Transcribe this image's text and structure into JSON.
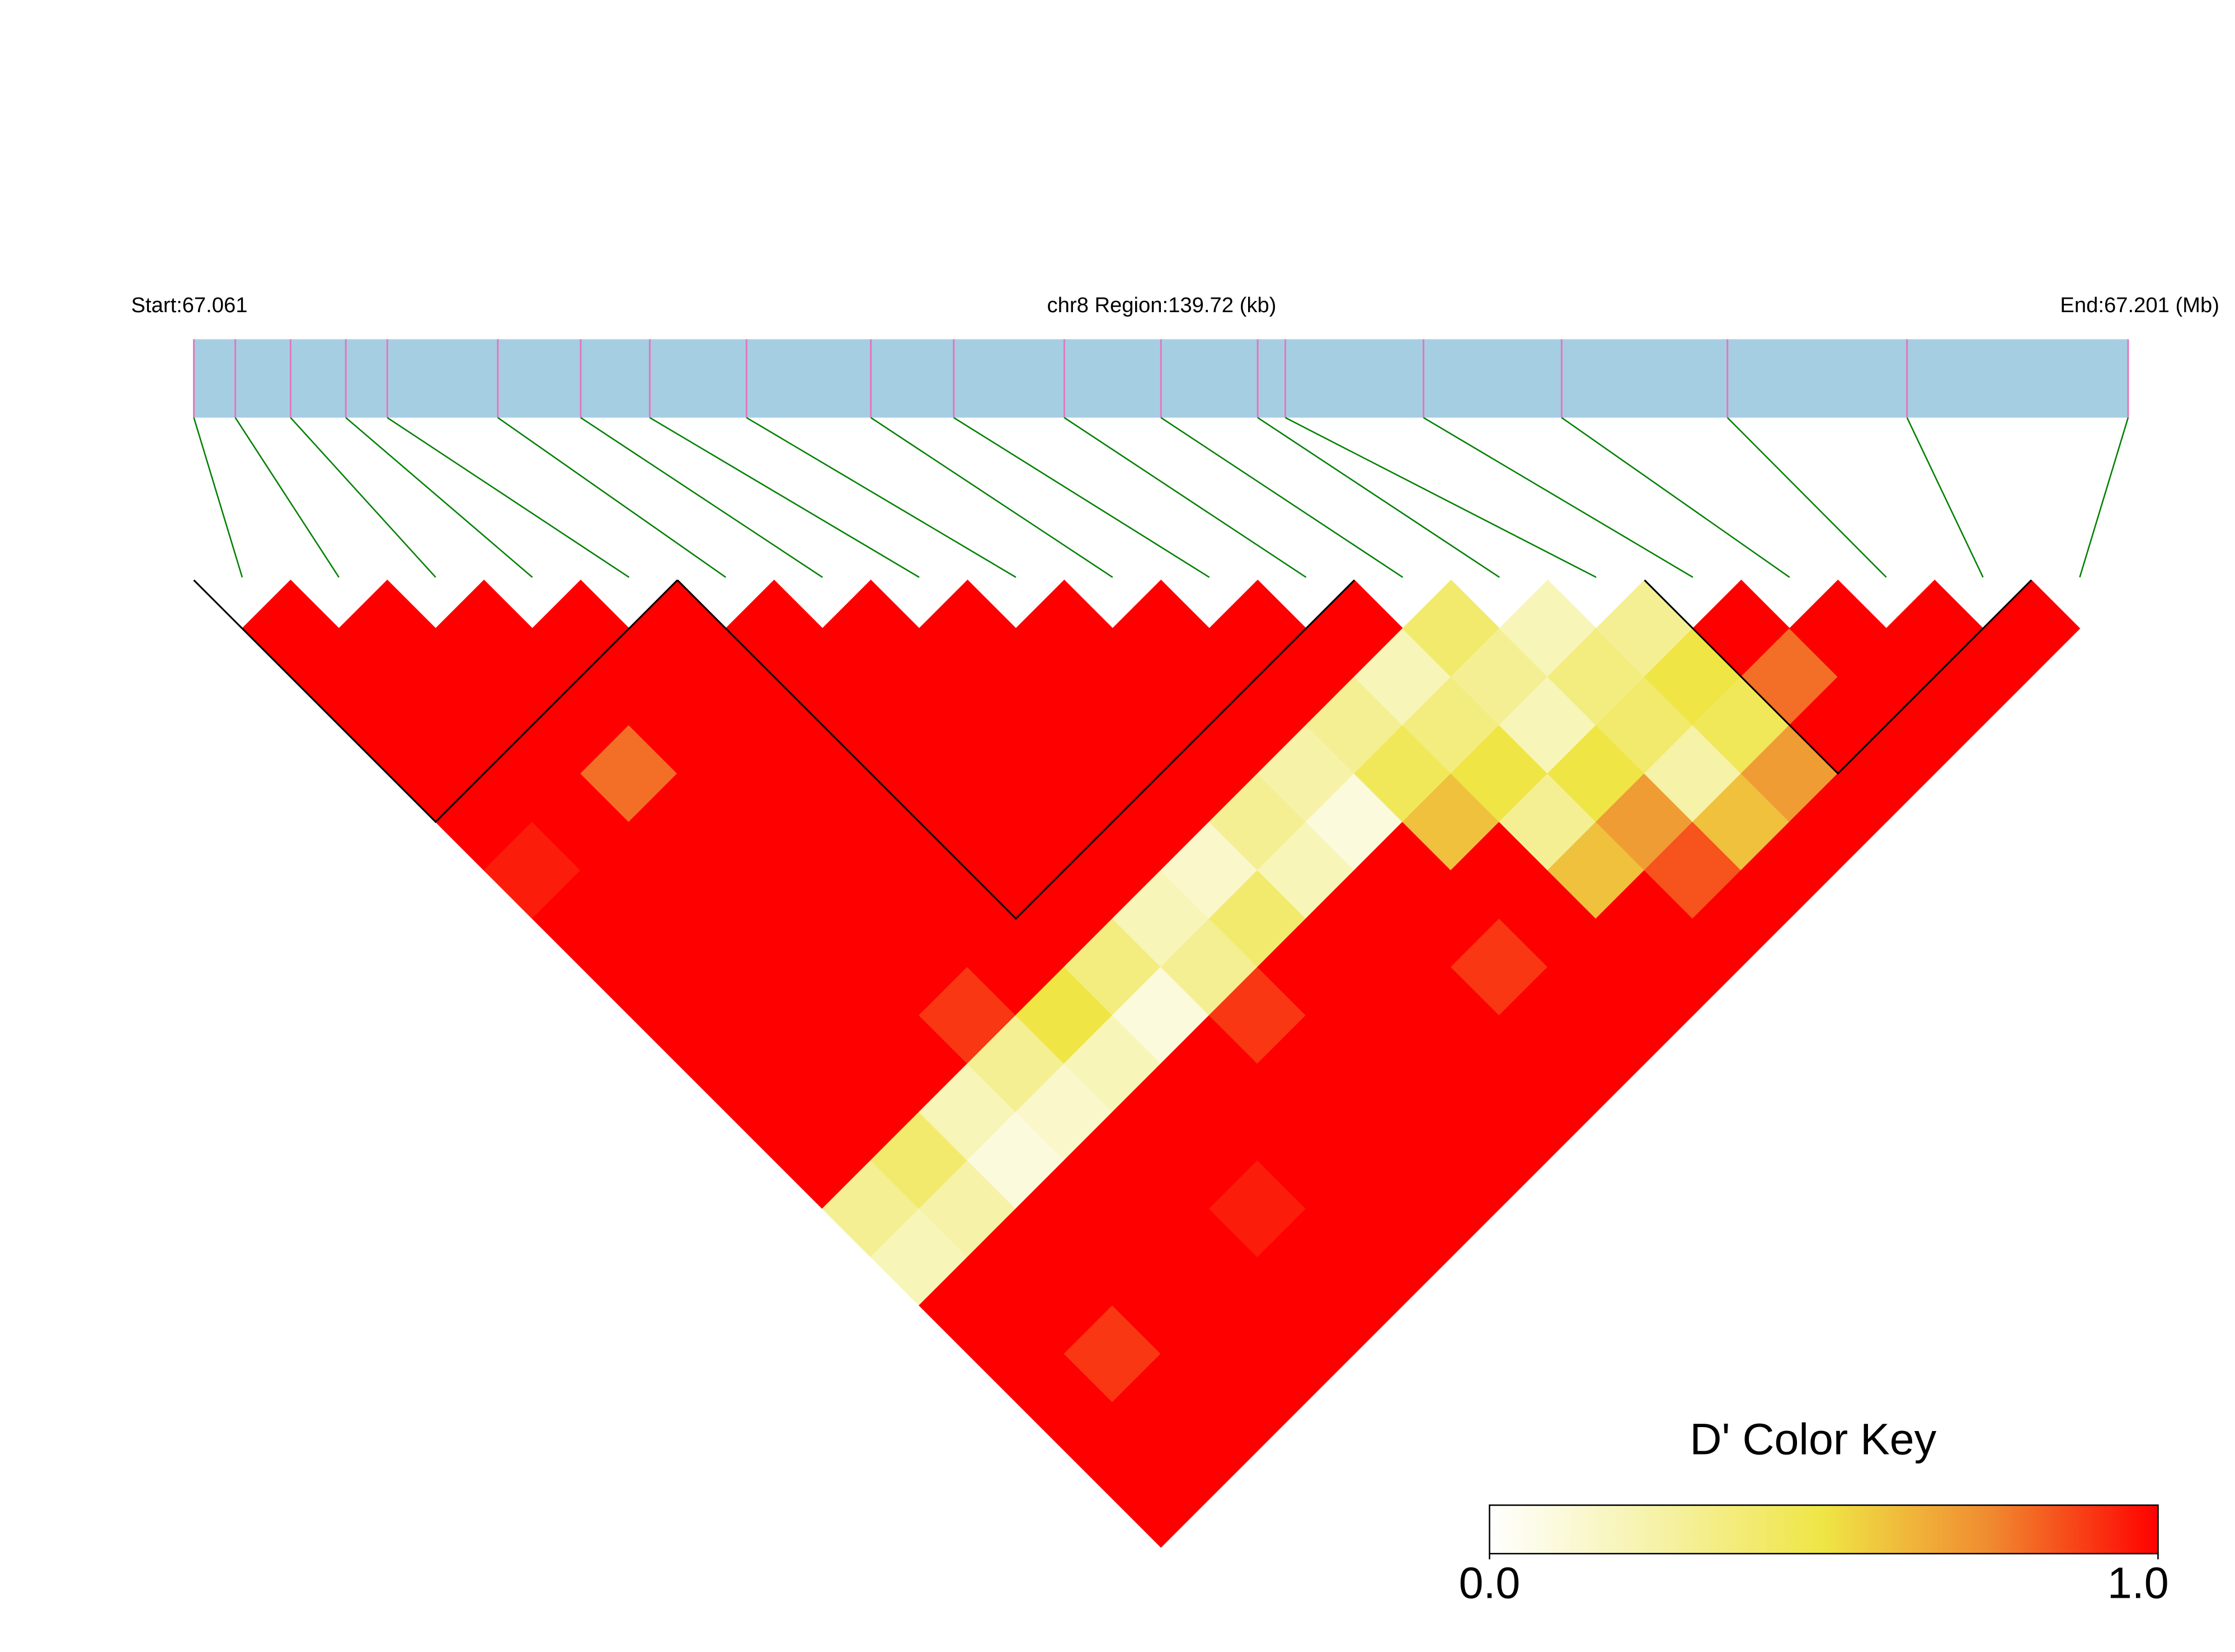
{
  "chart_data": {
    "type": "ld_heatmap",
    "start_label": "Start:67.061",
    "region_label": "chr8 Region:139.72 (kb)",
    "end_label": "End:67.201 (Mb)",
    "xlim": [
      67.061,
      67.201
    ],
    "snp_positions": [
      67.061,
      67.064,
      67.068,
      67.072,
      67.075,
      67.083,
      67.089,
      67.094,
      67.101,
      67.11,
      67.116,
      67.124,
      67.131,
      67.138,
      67.14,
      67.15,
      67.16,
      67.172,
      67.185,
      67.201
    ],
    "dprime": [
      [
        1,
        1,
        1,
        1,
        1,
        0.95,
        1,
        1,
        1,
        1,
        1,
        1,
        0.3,
        0.2,
        1,
        1,
        1,
        1,
        1
      ],
      [
        1,
        1,
        1,
        1,
        1,
        1,
        1,
        1,
        1,
        1,
        1,
        0.4,
        0.25,
        1,
        1,
        0.9,
        1,
        1
      ],
      [
        1,
        1,
        1,
        0.8,
        1,
        1,
        1,
        1,
        1,
        1,
        0.2,
        0.1,
        1,
        1,
        1,
        1,
        1
      ],
      [
        1,
        1,
        1,
        1,
        1,
        1,
        1,
        1,
        0.9,
        0.3,
        0.15,
        1,
        1,
        1,
        1,
        1
      ],
      [
        1,
        1,
        1,
        1,
        1,
        1,
        1,
        1,
        0.5,
        0.2,
        1,
        1,
        0.95,
        1,
        1
      ],
      [
        1,
        1,
        1,
        1,
        1,
        1,
        1,
        0.35,
        0.1,
        1,
        1,
        1,
        1,
        1
      ],
      [
        1,
        1,
        1,
        1,
        1,
        1,
        0.2,
        0.3,
        0.9,
        1,
        1,
        1,
        1
      ],
      [
        1,
        1,
        1,
        1,
        1,
        0.15,
        0.4,
        1,
        1,
        1,
        1,
        1
      ],
      [
        1,
        1,
        1,
        1,
        0.3,
        0.2,
        1,
        1,
        1,
        1,
        1
      ],
      [
        1,
        1,
        1,
        0.25,
        0.1,
        1,
        1,
        0.9,
        1,
        1
      ],
      [
        1,
        1,
        0.3,
        0.45,
        0.6,
        1,
        1,
        1,
        1
      ],
      [
        1,
        0.2,
        0.35,
        0.5,
        0.3,
        0.6,
        1,
        1
      ],
      [
        0.4,
        0.3,
        0.2,
        0.5,
        0.7,
        0.85,
        1
      ],
      [
        0.2,
        0.35,
        0.4,
        0.25,
        0.6,
        1
      ],
      [
        0.3,
        0.5,
        0.45,
        0.7,
        1
      ],
      [
        1,
        0.8,
        1,
        1
      ],
      [
        1,
        1,
        1
      ],
      [
        1,
        1
      ],
      [
        1
      ]
    ],
    "blocks": [
      [
        0,
        4
      ],
      [
        5,
        11
      ],
      [
        15,
        18
      ]
    ],
    "bar_color": "#a6cee3",
    "snp_line_color": "#e377c2",
    "link_color": "#008000",
    "block_color": "#000000",
    "colorbar": {
      "title": "D' Color Key",
      "lim": [
        0,
        1
      ],
      "ticks": [
        {
          "value": 0,
          "label": "0.0"
        },
        {
          "value": 1,
          "label": "1.0"
        }
      ],
      "colors": [
        "#ffffff",
        "#f6f2a8",
        "#efe545",
        "#f08a30",
        "#ff0000"
      ]
    }
  }
}
